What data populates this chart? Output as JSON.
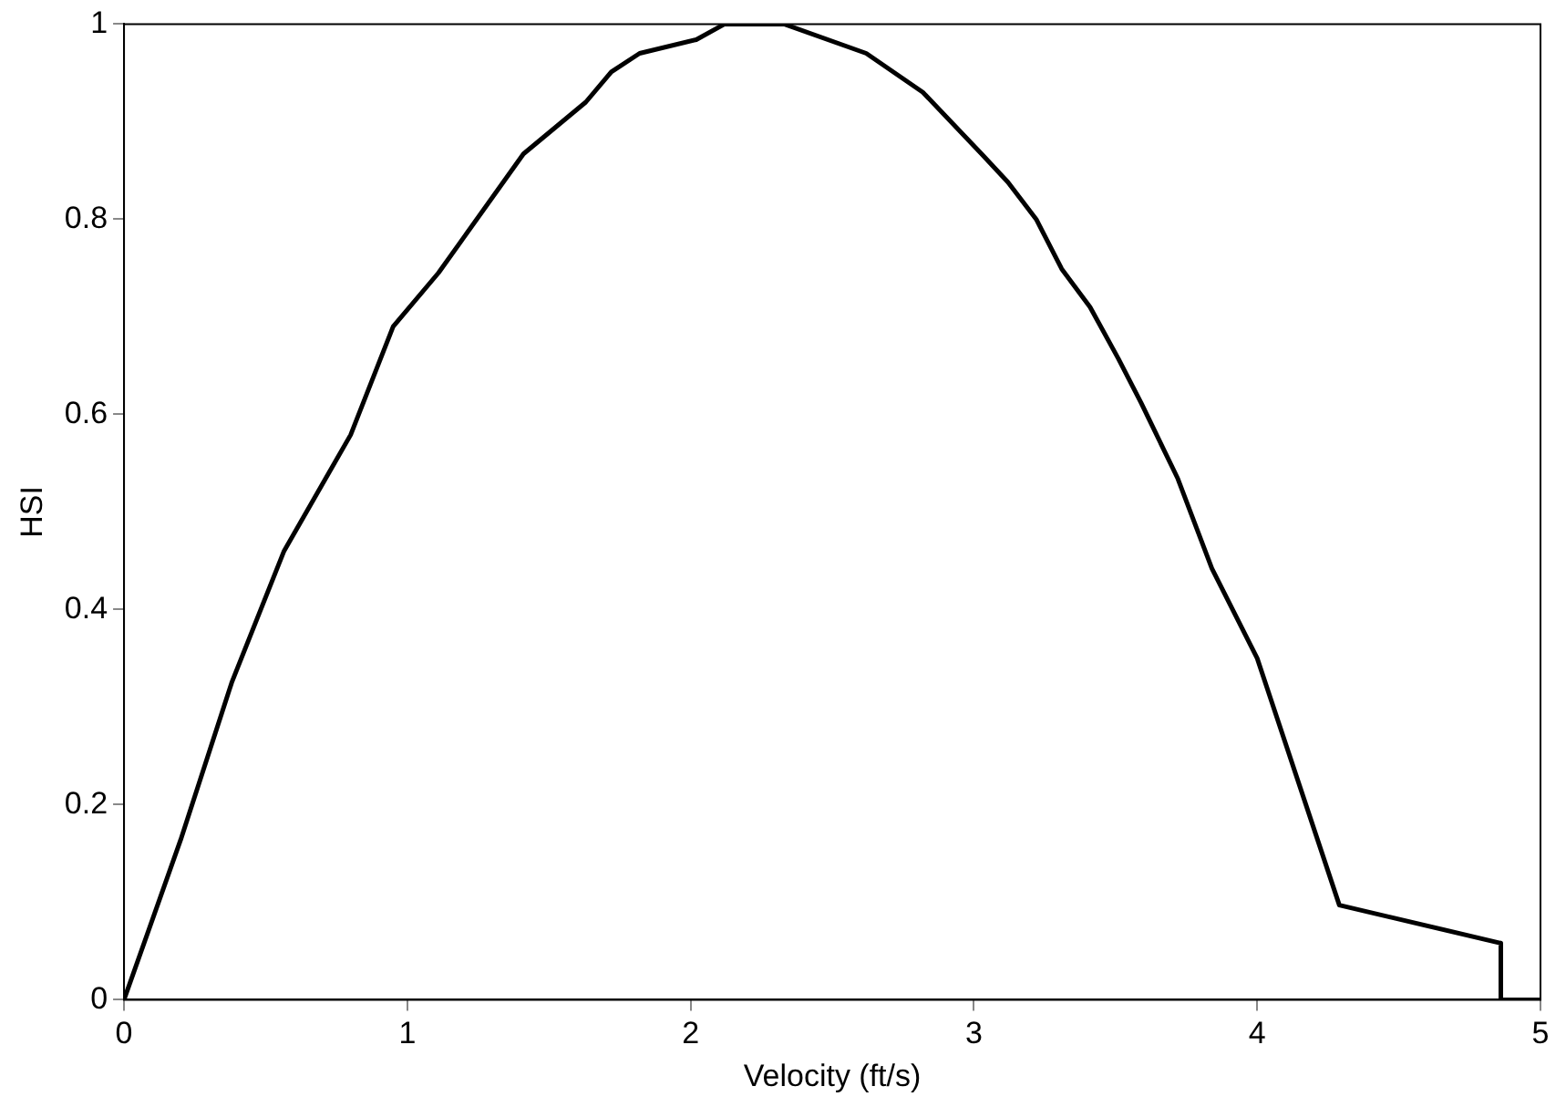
{
  "chart_data": {
    "type": "line",
    "xlabel": "Velocity (ft/s)",
    "ylabel": "HSI",
    "x": [
      0,
      0.2,
      0.38,
      0.565,
      0.8,
      0.95,
      1.11,
      1.41,
      1.63,
      1.72,
      1.82,
      2.02,
      2.12,
      2.33,
      2.62,
      2.82,
      3.03,
      3.12,
      3.22,
      3.31,
      3.41,
      3.51,
      3.59,
      3.72,
      3.84,
      4.0,
      4.29,
      4.86,
      4.86,
      5
    ],
    "series": [
      {
        "color": "#000000",
        "values": [
          0,
          0.164,
          0.325,
          0.46,
          0.579,
          0.69,
          0.745,
          0.867,
          0.92,
          0.951,
          0.97,
          0.984,
          1,
          1,
          0.97,
          0.93,
          0.866,
          0.838,
          0.8,
          0.749,
          0.71,
          0.657,
          0.612,
          0.534,
          0.442,
          0.35,
          0.097,
          0.058,
          0,
          0
        ]
      }
    ],
    "xlim": [
      0,
      5
    ],
    "xticks": [
      0,
      1,
      2,
      3,
      4,
      5
    ],
    "ylim": [
      0,
      1
    ],
    "yticks": [
      0,
      0.2,
      0.4,
      0.6,
      0.8,
      1
    ],
    "grid": false,
    "legend": false,
    "marker": "none",
    "line_style": "solid"
  }
}
